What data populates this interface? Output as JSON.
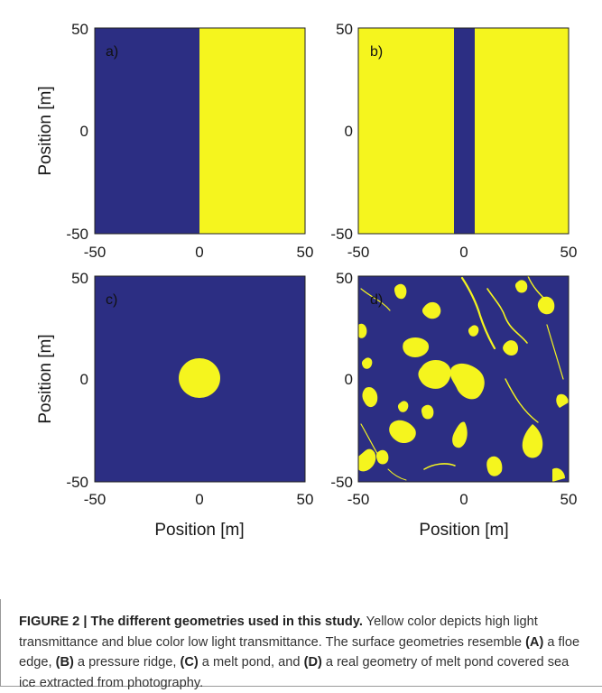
{
  "figure": {
    "xlabel": "Position [m]",
    "ylabel": "Position [m]",
    "colors": {
      "low": "#2c2e83",
      "high": "#f5f51e"
    },
    "colormap_meaning": {
      "yellow": "high light transmittance",
      "blue": "low light transmittance"
    }
  },
  "chart_data": [
    {
      "type": "heatmap",
      "panel": "a)",
      "geometry": "floe edge",
      "xlim": [
        -50,
        50
      ],
      "ylim": [
        -50,
        50
      ],
      "xticks": [
        "-50",
        "0",
        "50"
      ],
      "yticks": [
        "50",
        "0",
        "-50"
      ],
      "regions": [
        {
          "shape": "rect",
          "value": "high",
          "x": [
            0,
            50
          ],
          "y": [
            -50,
            50
          ]
        }
      ]
    },
    {
      "type": "heatmap",
      "panel": "b)",
      "geometry": "pressure ridge",
      "xlim": [
        -50,
        50
      ],
      "ylim": [
        -50,
        50
      ],
      "xticks": [
        "-50",
        "0",
        "50"
      ],
      "yticks": [
        "50",
        "0",
        "-50"
      ],
      "regions": [
        {
          "shape": "rect",
          "value": "high",
          "x": [
            -50,
            -5
          ],
          "y": [
            -50,
            50
          ]
        },
        {
          "shape": "rect",
          "value": "high",
          "x": [
            5,
            50
          ],
          "y": [
            -50,
            50
          ]
        }
      ]
    },
    {
      "type": "heatmap",
      "panel": "c)",
      "geometry": "melt pond",
      "xlim": [
        -50,
        50
      ],
      "ylim": [
        -50,
        50
      ],
      "xticks": [
        "-50",
        "0",
        "50"
      ],
      "yticks": [
        "50",
        "0",
        "-50"
      ],
      "xlabel": "Position [m]",
      "ylabel": "Position [m]",
      "regions": [
        {
          "shape": "circle",
          "value": "high",
          "center": [
            0,
            0
          ],
          "radius": 10
        }
      ]
    },
    {
      "type": "heatmap",
      "panel": "d)",
      "geometry": "real melt pond geometry from photography",
      "xlim": [
        -50,
        50
      ],
      "ylim": [
        -50,
        50
      ],
      "xticks": [
        "-50",
        "0",
        "50"
      ],
      "yticks": [
        "50",
        "0",
        "-50"
      ],
      "xlabel": "Position [m]"
    }
  ],
  "caption": {
    "label": "FIGURE 2 | The different geometries used in this study.",
    "part1": " Yellow color depicts high light transmittance and blue color low light transmittance. The surface geometries resemble ",
    "refA": "(A)",
    "textA": " a floe edge, ",
    "refB": "(B)",
    "textB": " a pressure ridge, ",
    "refC": "(C)",
    "textC": " a melt pond, and ",
    "refD": "(D)",
    "textD": " a real geometry of melt pond covered sea ice extracted from photography."
  }
}
